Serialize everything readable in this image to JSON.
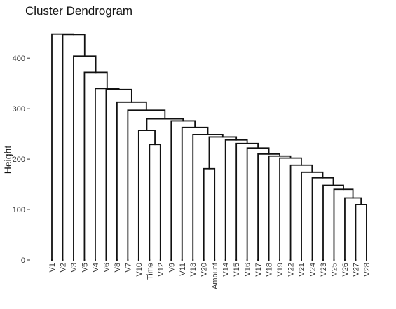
{
  "chart_data": {
    "type": "dendrogram",
    "title": "Cluster Dendrogram",
    "ylabel": "Height",
    "xlabel": "",
    "ylim": [
      0,
      460
    ],
    "yticks": [
      0,
      100,
      200,
      300,
      400
    ],
    "grid": false,
    "leaves": [
      "V1",
      "V2",
      "V3",
      "V5",
      "V4",
      "V6",
      "V8",
      "V7",
      "V10",
      "Time",
      "V12",
      "V9",
      "V11",
      "V13",
      "V20",
      "Amount",
      "V14",
      "V15",
      "V16",
      "V17",
      "V18",
      "V19",
      "V22",
      "V21",
      "V24",
      "V23",
      "V25",
      "V26",
      "V27",
      "V28"
    ],
    "merges": [
      {
        "id": "m1",
        "left": "V27",
        "right": "V28",
        "height": 110
      },
      {
        "id": "m2",
        "left": "V26",
        "right": "m1",
        "height": 123
      },
      {
        "id": "m3",
        "left": "V25",
        "right": "m2",
        "height": 140
      },
      {
        "id": "m4",
        "left": "V23",
        "right": "m3",
        "height": 148
      },
      {
        "id": "m5",
        "left": "V24",
        "right": "m4",
        "height": 163
      },
      {
        "id": "m6",
        "left": "V21",
        "right": "m5",
        "height": 174
      },
      {
        "id": "m7",
        "left": "V22",
        "right": "m6",
        "height": 188
      },
      {
        "id": "m8",
        "left": "V19",
        "right": "m7",
        "height": 202
      },
      {
        "id": "m9",
        "left": "V18",
        "right": "m8",
        "height": 206
      },
      {
        "id": "m10",
        "left": "V17",
        "right": "m9",
        "height": 210
      },
      {
        "id": "m11",
        "left": "V16",
        "right": "m10",
        "height": 222
      },
      {
        "id": "m12",
        "left": "V15",
        "right": "m11",
        "height": 231
      },
      {
        "id": "m13",
        "left": "V14",
        "right": "m12",
        "height": 238
      },
      {
        "id": "m14",
        "left": "V20",
        "right": "Amount",
        "height": 181
      },
      {
        "id": "m15",
        "left": "m14",
        "right": "m13",
        "height": 244
      },
      {
        "id": "m16",
        "left": "V13",
        "right": "m15",
        "height": 249
      },
      {
        "id": "m17",
        "left": "V11",
        "right": "m16",
        "height": 263
      },
      {
        "id": "m18",
        "left": "V9",
        "right": "m17",
        "height": 276
      },
      {
        "id": "m19",
        "left": "Time",
        "right": "V12",
        "height": 229
      },
      {
        "id": "m20",
        "left": "V10",
        "right": "m19",
        "height": 257
      },
      {
        "id": "m21",
        "left": "m20",
        "right": "m18",
        "height": 280
      },
      {
        "id": "m22",
        "left": "V7",
        "right": "m21",
        "height": 297
      },
      {
        "id": "m23",
        "left": "V8",
        "right": "m22",
        "height": 313
      },
      {
        "id": "m24",
        "left": "V6",
        "right": "m23",
        "height": 338
      },
      {
        "id": "m25",
        "left": "V4",
        "right": "m24",
        "height": 340
      },
      {
        "id": "m26",
        "left": "V5",
        "right": "m25",
        "height": 372
      },
      {
        "id": "m27",
        "left": "V3",
        "right": "m26",
        "height": 404
      },
      {
        "id": "m28",
        "left": "V2",
        "right": "m27",
        "height": 447
      },
      {
        "id": "m29",
        "left": "V1",
        "right": "m28",
        "height": 448
      }
    ]
  }
}
